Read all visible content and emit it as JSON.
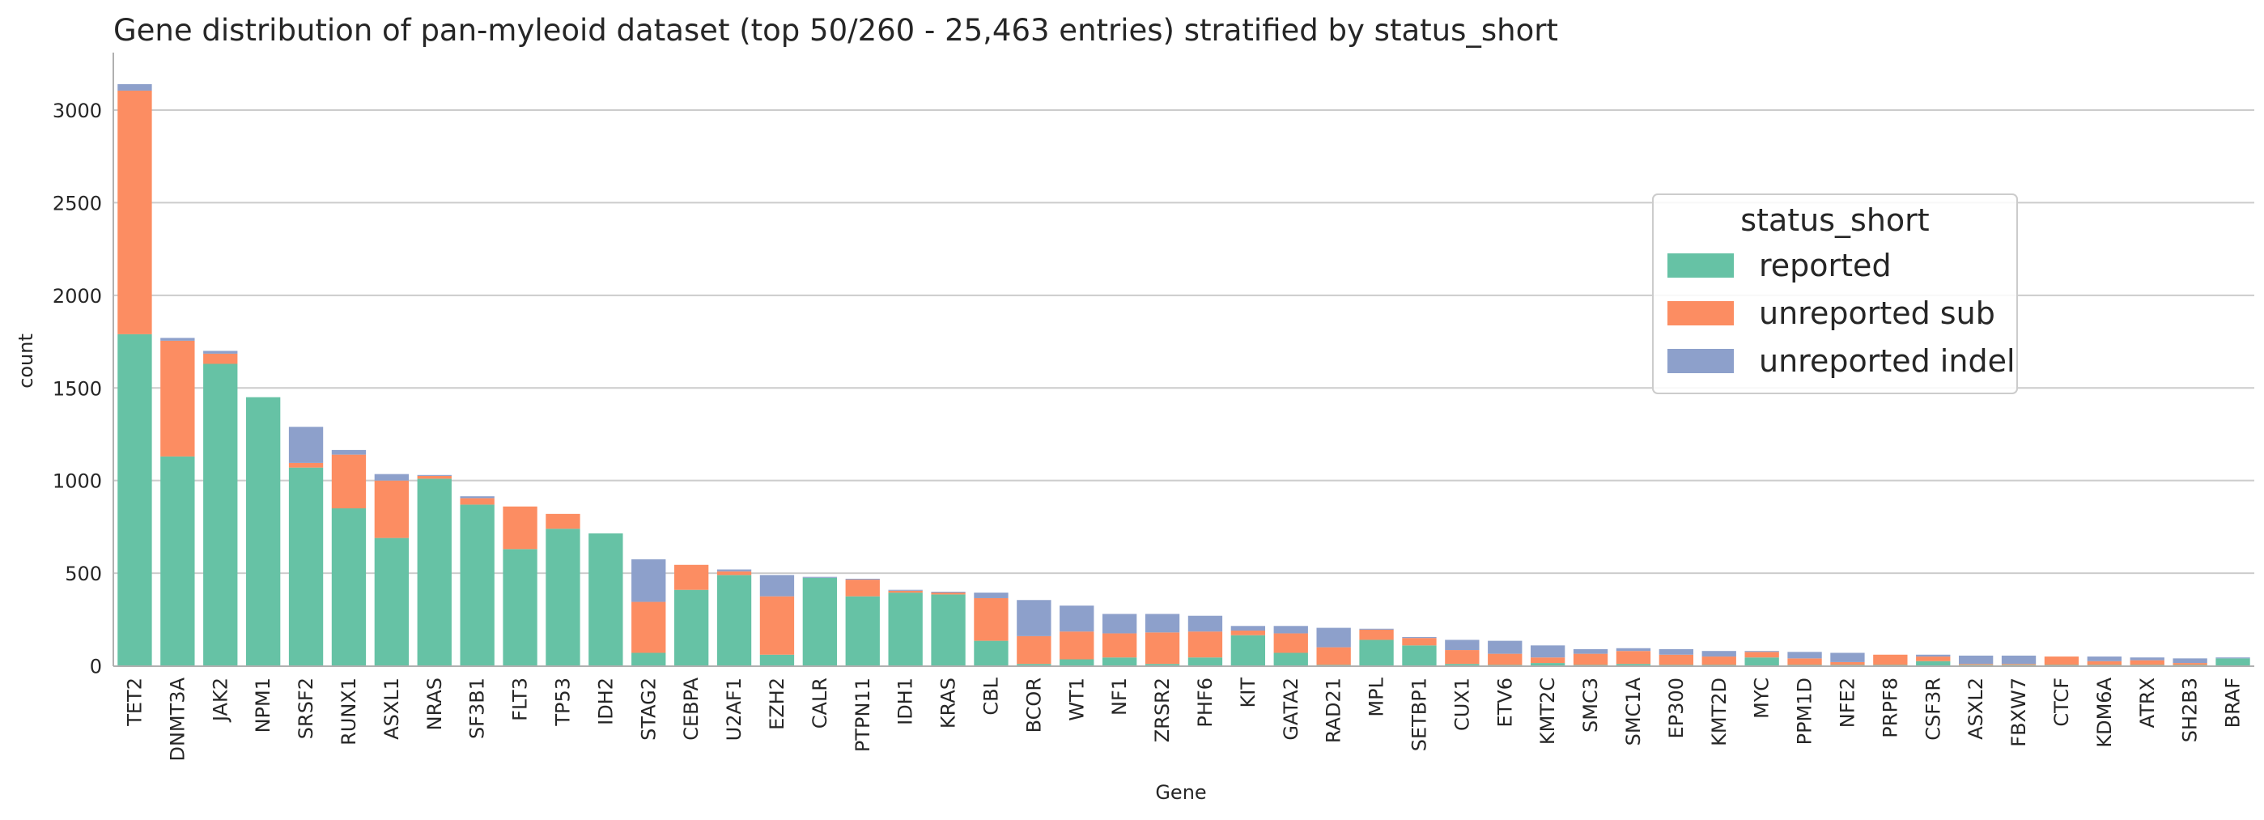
{
  "chart_data": {
    "type": "bar",
    "stacked": true,
    "title": "Gene distribution of pan-myleoid dataset (top 50/260 - 25,463 entries) stratified by status_short",
    "xlabel": "Gene",
    "ylabel": "count",
    "ylim": [
      0,
      3300
    ],
    "yticks": [
      0,
      500,
      1000,
      1500,
      2000,
      2500,
      3000
    ],
    "grid": "horizontal",
    "legend_title": "status_short",
    "legend_position": "right",
    "categories": [
      "TET2",
      "DNMT3A",
      "JAK2",
      "NPM1",
      "SRSF2",
      "RUNX1",
      "ASXL1",
      "NRAS",
      "SF3B1",
      "FLT3",
      "TP53",
      "IDH2",
      "STAG2",
      "CEBPA",
      "U2AF1",
      "EZH2",
      "CALR",
      "PTPN11",
      "IDH1",
      "KRAS",
      "CBL",
      "BCOR",
      "WT1",
      "NF1",
      "ZRSR2",
      "PHF6",
      "KIT",
      "GATA2",
      "RAD21",
      "MPL",
      "SETBP1",
      "CUX1",
      "ETV6",
      "KMT2C",
      "SMC3",
      "SMC1A",
      "EP300",
      "KMT2D",
      "MYC",
      "PPM1D",
      "NFE2",
      "PRPF8",
      "CSF3R",
      "ASXL2",
      "FBXW7",
      "CTCF",
      "KDM6A",
      "ATRX",
      "SH2B3",
      "BRAF"
    ],
    "series": [
      {
        "name": "reported",
        "color": "#66c2a5",
        "values": [
          1790,
          1130,
          1630,
          1450,
          1070,
          850,
          690,
          1010,
          870,
          630,
          740,
          715,
          70,
          410,
          490,
          60,
          475,
          375,
          395,
          385,
          135,
          10,
          35,
          45,
          10,
          45,
          165,
          70,
          5,
          140,
          110,
          10,
          5,
          15,
          5,
          10,
          5,
          5,
          45,
          5,
          5,
          5,
          25,
          5,
          5,
          5,
          5,
          5,
          5,
          40
        ]
      },
      {
        "name": "unreported sub",
        "color": "#fc8d62",
        "values": [
          1315,
          625,
          55,
          0,
          25,
          290,
          310,
          15,
          35,
          230,
          80,
          0,
          275,
          135,
          20,
          315,
          0,
          90,
          10,
          10,
          230,
          150,
          150,
          130,
          170,
          140,
          25,
          105,
          95,
          55,
          40,
          75,
          60,
          30,
          60,
          70,
          55,
          45,
          30,
          35,
          15,
          55,
          25,
          5,
          5,
          45,
          20,
          25,
          10,
          0
        ]
      },
      {
        "name": "unreported indel",
        "color": "#8da0cb",
        "values": [
          35,
          15,
          15,
          0,
          195,
          25,
          35,
          5,
          10,
          0,
          0,
          0,
          230,
          0,
          10,
          115,
          5,
          5,
          5,
          5,
          30,
          195,
          140,
          105,
          100,
          85,
          25,
          40,
          105,
          5,
          5,
          55,
          70,
          65,
          25,
          15,
          30,
          30,
          5,
          35,
          50,
          0,
          10,
          45,
          45,
          0,
          25,
          15,
          25,
          5
        ]
      }
    ]
  }
}
